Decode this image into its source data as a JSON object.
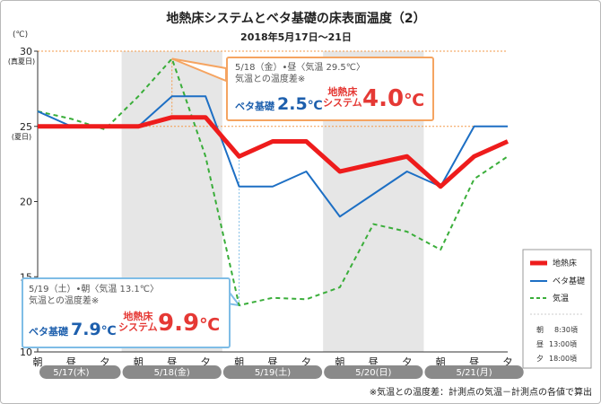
{
  "title": "地熱床システムとベタ基礎の床表面温度（2）",
  "subtitle": "2018年5月17日～21日",
  "unit_label": "(℃)",
  "y_ticks": [
    {
      "value": 10,
      "label": "10"
    },
    {
      "value": 15,
      "label": "15"
    },
    {
      "value": 20,
      "label": "20"
    },
    {
      "value": 25,
      "label": "25",
      "sublabel": "(夏日)"
    },
    {
      "value": 30,
      "label": "30",
      "sublabel": "(真夏日)"
    }
  ],
  "reference_lines": [
    25,
    30
  ],
  "colors": {
    "floor": "#ee1c1c",
    "beta": "#1d6fc4",
    "air": "#3aae3a",
    "shade": "#e6e6e6",
    "day_pill": "#8a8a8a",
    "callout_top": "#f5a461",
    "callout_bottom": "#7fbde6",
    "ref_line": "#f39a4a"
  },
  "chart_data": {
    "type": "line",
    "x": [
      "朝",
      "昼",
      "夕",
      "朝",
      "昼",
      "夕",
      "朝",
      "昼",
      "夕",
      "朝",
      "昼",
      "夕",
      "朝",
      "昼",
      "夕"
    ],
    "days": [
      "5/17(木)",
      "5/18(金)",
      "5/19(土)",
      "5/20(日)",
      "5/21(月)"
    ],
    "ylim": [
      10,
      30
    ],
    "grid": false,
    "legend_position": "right",
    "series": [
      {
        "name": "地熱床",
        "values": [
          25,
          25,
          25,
          25,
          25.6,
          25.6,
          23,
          24,
          24,
          22,
          22.5,
          23,
          21,
          23,
          24
        ]
      },
      {
        "name": "ベタ基礎",
        "values": [
          26,
          25,
          25,
          25,
          27,
          27,
          21,
          21,
          22,
          19,
          20.5,
          22,
          21,
          25,
          25
        ]
      },
      {
        "name": "気温",
        "values": [
          26,
          25.5,
          24.8,
          27,
          29.5,
          23,
          13.1,
          13.6,
          13.5,
          14.3,
          18.5,
          18,
          16.8,
          21.5,
          23
        ]
      }
    ]
  },
  "legend": {
    "items": [
      {
        "label": "地熱床",
        "key": "floor"
      },
      {
        "label": "ベタ基礎",
        "key": "beta"
      },
      {
        "label": "気温",
        "key": "air"
      }
    ],
    "time_notes": [
      {
        "label": "朝",
        "time": "8:30頃"
      },
      {
        "label": "昼",
        "time": "13:00頃"
      },
      {
        "label": "夕",
        "time": "18:00頃"
      }
    ]
  },
  "callout_top": {
    "line1": "5/18（金）•昼〈気温 29.5℃〉",
    "line2": "気温との温度差※",
    "beta_label": "ベタ基礎",
    "beta_value": "2.5",
    "floor_label_1": "地熱床",
    "floor_label_2": "システム",
    "floor_value": "4.0",
    "unit": "℃"
  },
  "callout_bottom": {
    "line1": "5/19（土）•朝〈気温 13.1℃〉",
    "line2": "気温との温度差※",
    "beta_label": "ベタ基礎",
    "beta_value": "7.9",
    "floor_label_1": "地熱床",
    "floor_label_2": "システム",
    "floor_value": "9.9",
    "unit": "℃"
  },
  "footnote": "※気温との温度差：計測点の気温－計測点の各値で算出"
}
